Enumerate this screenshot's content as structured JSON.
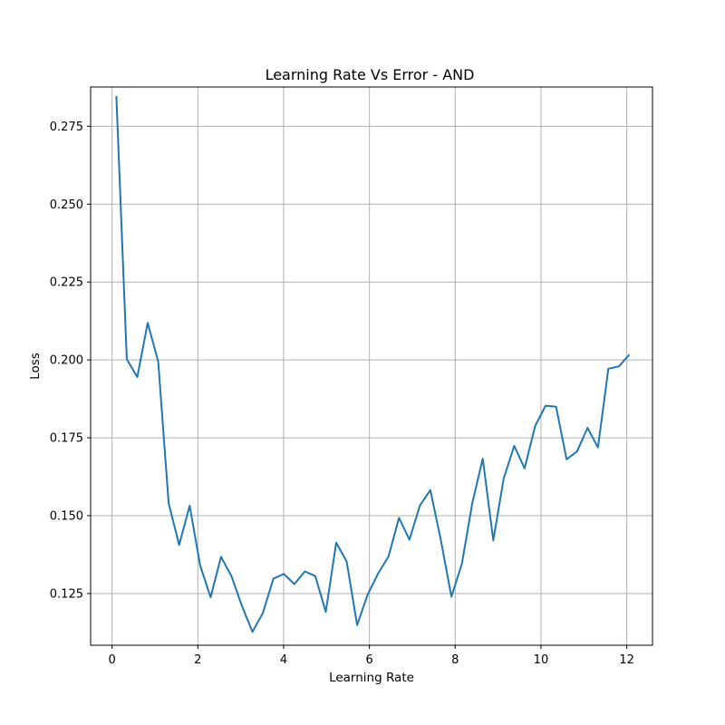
{
  "chart_data": {
    "type": "line",
    "title": "Learning Rate Vs Error - AND",
    "xlabel": "Learning Rate",
    "ylabel": "Loss",
    "xlim": [
      -0.5,
      12.6
    ],
    "ylim": [
      0.1084,
      0.2876
    ],
    "xticks": [
      0,
      2,
      4,
      6,
      8,
      10,
      12
    ],
    "xtick_labels": [
      "0",
      "2",
      "4",
      "6",
      "8",
      "10",
      "12"
    ],
    "yticks": [
      0.125,
      0.15,
      0.175,
      0.2,
      0.225,
      0.25,
      0.275
    ],
    "ytick_labels": [
      "0.125",
      "0.150",
      "0.175",
      "0.200",
      "0.225",
      "0.250",
      "0.275"
    ],
    "grid": true,
    "series": [
      {
        "color": "#1f77b4",
        "x": [
          0.1,
          0.344,
          0.588,
          0.832,
          1.076,
          1.32,
          1.565,
          1.809,
          2.053,
          2.297,
          2.541,
          2.785,
          3.029,
          3.273,
          3.517,
          3.761,
          4.005,
          4.249,
          4.494,
          4.738,
          4.982,
          5.226,
          5.47,
          5.714,
          5.958,
          6.202,
          6.446,
          6.69,
          6.934,
          7.178,
          7.422,
          7.667,
          7.911,
          8.155,
          8.399,
          8.643,
          8.887,
          9.131,
          9.375,
          9.619,
          9.863,
          10.107,
          10.351,
          10.596,
          10.84,
          11.084,
          11.328,
          11.572,
          11.816,
          12.06
        ],
        "y": [
          0.2847,
          0.2002,
          0.1945,
          0.2119,
          0.1994,
          0.154,
          0.1406,
          0.1532,
          0.1341,
          0.1238,
          0.1368,
          0.1305,
          0.121,
          0.1127,
          0.1188,
          0.1298,
          0.1313,
          0.128,
          0.1321,
          0.1306,
          0.1191,
          0.1413,
          0.1353,
          0.1149,
          0.1246,
          0.1314,
          0.1369,
          0.1493,
          0.1423,
          0.1533,
          0.1582,
          0.1421,
          0.124,
          0.1345,
          0.1541,
          0.1683,
          0.1421,
          0.1619,
          0.1724,
          0.1652,
          0.1788,
          0.1853,
          0.185,
          0.1681,
          0.1706,
          0.1782,
          0.1719,
          0.1972,
          0.1979,
          0.2017
        ]
      }
    ]
  }
}
